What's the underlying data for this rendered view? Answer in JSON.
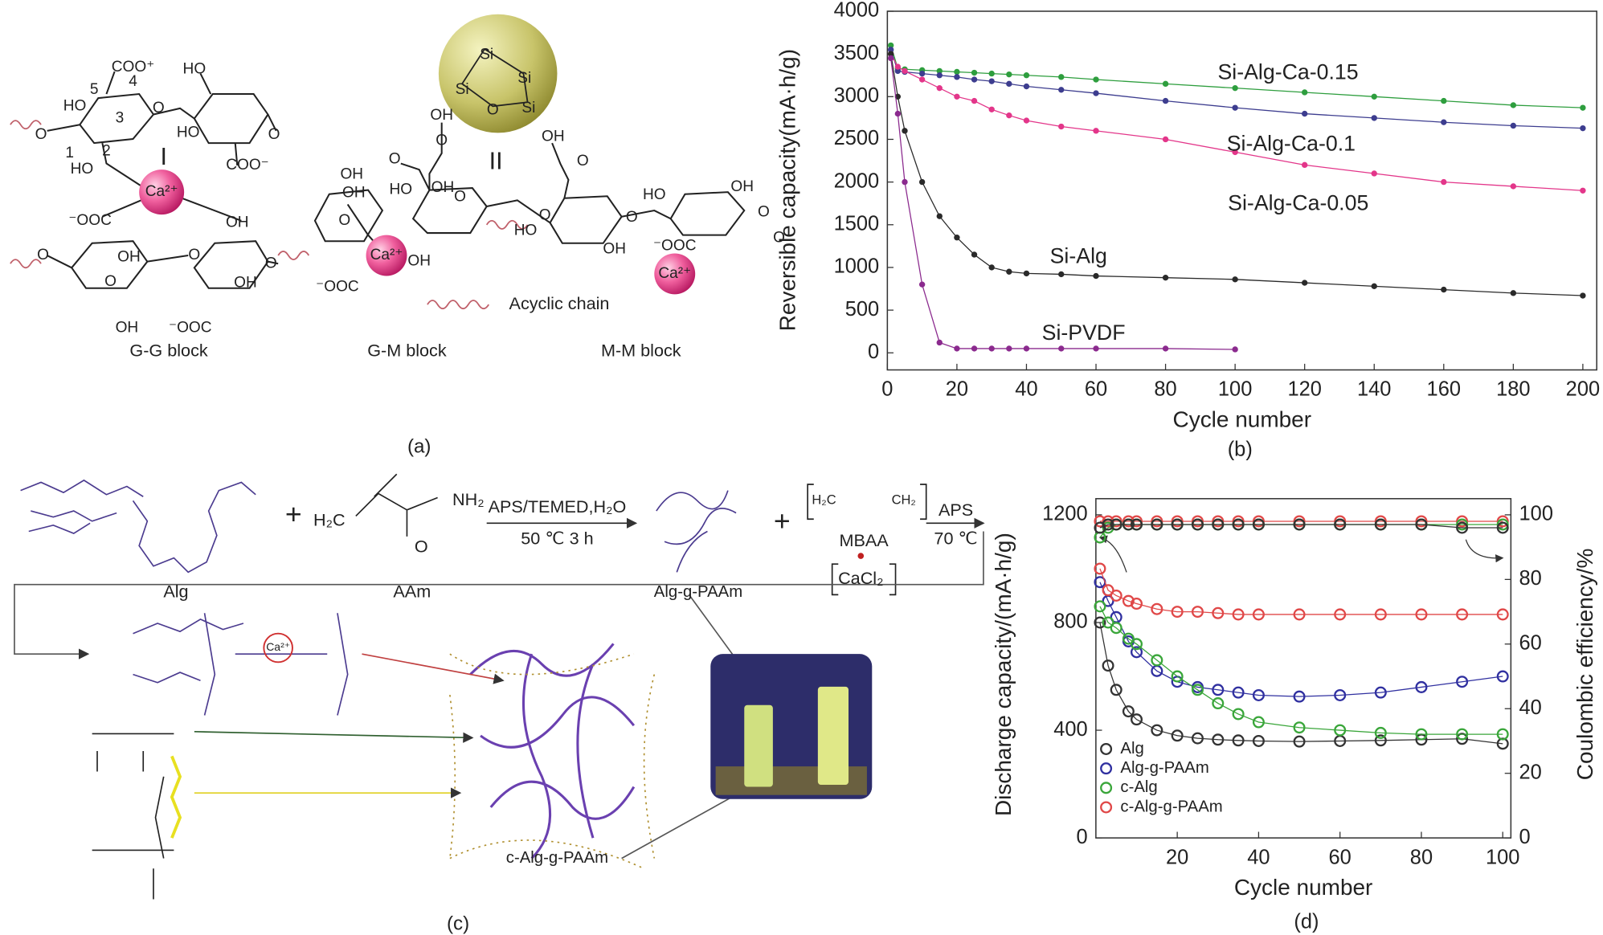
{
  "figure": {
    "panel_a": {
      "labels": [
        "COO⁺",
        "HO",
        "5",
        "4",
        "HO",
        "3",
        "O",
        "HO",
        "O",
        "O",
        "1",
        "2",
        "HO",
        "COO⁻",
        "I",
        "Ca²⁺",
        "⁻OOC",
        "OH",
        "O",
        "OH",
        "O",
        "O",
        "O",
        "OH",
        "OH",
        "⁻OOC",
        "G-G block",
        "Si",
        "Si",
        "Si",
        "Si",
        "O",
        "OH",
        "II",
        "OH",
        "O",
        "O",
        "O",
        "OH",
        "OH",
        "HO",
        "OH",
        "O",
        "O",
        "Ca²⁺",
        "OH",
        "⁻OOC",
        "O",
        "HO",
        "OH",
        "O",
        "HO",
        "OH",
        "O",
        "O",
        "⁻OOC",
        "Ca²⁺",
        "Acyclic chain",
        "G-M block",
        "M-M block",
        "(a)"
      ]
    },
    "panel_c": {
      "labels": [
        "Alg",
        "+",
        "H₂C",
        "NH₂",
        "O",
        "AAm",
        "APS/TEMED,H₂O",
        "50 ℃  3 h",
        "Alg-g-PAAm",
        "+",
        "H₂C",
        "CH₂",
        "MBAA",
        "CaCl₂",
        "APS",
        "70 ℃",
        "c-Alg-g-PAAm",
        "Ca²⁺",
        "(c)"
      ]
    }
  },
  "chart_data": [
    {
      "type": "line",
      "panel_label": "(b)",
      "xlabel": "Cycle number",
      "ylabel": "Reversible capacity(mA·h/g)",
      "x": [
        1,
        3,
        5,
        10,
        15,
        20,
        25,
        30,
        35,
        40,
        50,
        60,
        80,
        100,
        120,
        140,
        160,
        180,
        200
      ],
      "xlim": [
        0,
        204
      ],
      "ylim": [
        -200,
        4000
      ],
      "xticks": [
        0,
        20,
        40,
        60,
        80,
        100,
        120,
        140,
        160,
        180,
        200
      ],
      "yticks": [
        0,
        500,
        1000,
        1500,
        2000,
        2500,
        3000,
        3500,
        4000
      ],
      "marker": "filled",
      "legend": "inline",
      "series": [
        {
          "name": "Si-Alg-Ca-0.15",
          "color": "#2e9e3e",
          "values": [
            3600,
            3330,
            3320,
            3310,
            3300,
            3290,
            3280,
            3270,
            3260,
            3250,
            3230,
            3200,
            3150,
            3100,
            3050,
            3000,
            2950,
            2900,
            2870
          ]
        },
        {
          "name": "Si-Alg-Ca-0.1",
          "color": "#3d3d8f",
          "values": [
            3550,
            3300,
            3290,
            3270,
            3250,
            3230,
            3200,
            3180,
            3150,
            3120,
            3080,
            3040,
            2950,
            2870,
            2800,
            2750,
            2700,
            2660,
            2630
          ]
        },
        {
          "name": "Si-Alg-Ca-0.05",
          "color": "#e3368a",
          "values": [
            3500,
            3350,
            3300,
            3200,
            3100,
            3000,
            2950,
            2850,
            2780,
            2720,
            2650,
            2600,
            2500,
            2350,
            2200,
            2100,
            2000,
            1950,
            1900
          ]
        },
        {
          "name": "Si-Alg",
          "color": "#2a2a2a",
          "values": [
            3500,
            3000,
            2600,
            2000,
            1600,
            1350,
            1150,
            1000,
            950,
            930,
            920,
            900,
            880,
            860,
            820,
            780,
            740,
            700,
            670
          ]
        },
        {
          "name": "Si-PVDF",
          "color": "#8b2a8e",
          "values": [
            3450,
            2800,
            2000,
            800,
            120,
            50,
            50,
            50,
            50,
            50,
            50,
            50,
            50,
            40,
            null,
            null,
            null,
            null,
            null
          ]
        }
      ]
    },
    {
      "type": "line",
      "panel_label": "(d)",
      "xlabel": "Cycle number",
      "ylabel": "Discharge capacity/(mA·h/g)",
      "y2label": "Coulombic efficiency/%",
      "x": [
        1,
        3,
        5,
        8,
        10,
        15,
        20,
        25,
        30,
        35,
        40,
        50,
        60,
        70,
        80,
        90,
        100
      ],
      "xlim": [
        0,
        102
      ],
      "ylim": [
        0,
        1260
      ],
      "y2lim": [
        0,
        105
      ],
      "xticks": [
        20,
        40,
        60,
        80,
        100
      ],
      "yticks": [
        0,
        400,
        800,
        1200
      ],
      "y2ticks": [
        0,
        20,
        40,
        60,
        80,
        100
      ],
      "marker": "open",
      "legend": "lower left",
      "series": [
        {
          "name": "Alg",
          "color": "#333333",
          "values": [
            800,
            640,
            550,
            470,
            440,
            400,
            380,
            370,
            365,
            362,
            360,
            358,
            360,
            362,
            365,
            368,
            350
          ]
        },
        {
          "name": "Alg-g-PAAm",
          "color": "#3030a0",
          "values": [
            950,
            880,
            820,
            730,
            690,
            620,
            580,
            560,
            550,
            540,
            530,
            525,
            530,
            540,
            560,
            580,
            600
          ]
        },
        {
          "name": "c-Alg",
          "color": "#3aa63a",
          "values": [
            860,
            800,
            780,
            740,
            720,
            660,
            600,
            550,
            500,
            460,
            430,
            410,
            400,
            390,
            385,
            385,
            385
          ]
        },
        {
          "name": "c-Alg-g-PAAm",
          "color": "#e04848",
          "values": [
            1000,
            920,
            900,
            880,
            870,
            850,
            840,
            840,
            835,
            830,
            830,
            830,
            830,
            830,
            830,
            830,
            830
          ]
        },
        {
          "color": "#e04848",
          "axis": "y2",
          "values": [
            98,
            98,
            98,
            98,
            98,
            98,
            98,
            98,
            98,
            98,
            98,
            98,
            98,
            98,
            98,
            98,
            98
          ]
        },
        {
          "color": "#3aa63a",
          "axis": "y2",
          "values": [
            93,
            96,
            97,
            97,
            97,
            97,
            97,
            97,
            97,
            97,
            97,
            97,
            97,
            97,
            97,
            97,
            97
          ]
        },
        {
          "color": "#333333",
          "axis": "y2",
          "values": [
            96,
            97,
            97,
            97,
            97,
            97,
            97,
            97,
            97,
            97,
            97,
            97,
            97,
            97,
            97,
            96,
            96
          ]
        }
      ]
    }
  ]
}
